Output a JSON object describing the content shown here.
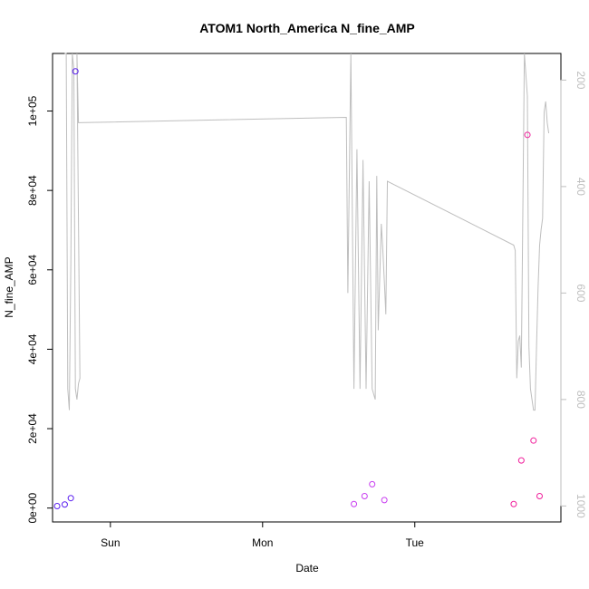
{
  "chart_data": {
    "type": "scatter",
    "title": "ATOM1 North_America N_fine_AMP",
    "xlabel": "Date",
    "ylabel": "N_fine_AMP",
    "x_ticks": [
      "Sun",
      "Mon",
      "Tue"
    ],
    "x_tick_pos": [
      0,
      1,
      2
    ],
    "xlim": [
      -0.38,
      2.96
    ],
    "ylim": [
      -3500,
      114500
    ],
    "y_ticks": [
      0,
      20000,
      40000,
      60000,
      80000,
      100000
    ],
    "y_tick_labels": [
      "0e+00",
      "2e+04",
      "4e+04",
      "6e+04",
      "8e+04",
      "1e+05"
    ],
    "right_axis": {
      "label": "",
      "ticks": [
        200,
        400,
        600,
        800,
        1000
      ],
      "tick_labels": [
        "200",
        "400",
        "600",
        "800",
        "1000"
      ],
      "ylim": [
        1030,
        150
      ],
      "reversed": true,
      "color": "#bebebe"
    },
    "line_series": {
      "name": "",
      "color": "#bebebe",
      "axis": "right",
      "x": [
        -0.3,
        -0.29,
        -0.28,
        -0.27,
        -0.26,
        -0.25,
        -0.24,
        -0.23,
        -0.22,
        -0.21,
        -0.2,
        -0.22,
        -0.21,
        1.55,
        1.56,
        1.58,
        1.6,
        1.62,
        1.64,
        1.66,
        1.68,
        1.7,
        1.72,
        1.74,
        1.75,
        1.76,
        1.78,
        1.79,
        1.8,
        1.81,
        1.82,
        2.65,
        2.66,
        2.67,
        2.68,
        2.69,
        2.7,
        2.72,
        2.74,
        2.75,
        2.76,
        2.77,
        2.78,
        2.79,
        2.8,
        2.81,
        2.82,
        2.83,
        2.84,
        2.85,
        2.86,
        2.87,
        2.88
      ],
      "y": [
        150,
        150,
        780,
        820,
        540,
        150,
        180,
        780,
        800,
        770,
        760,
        150,
        280,
        270,
        600,
        150,
        780,
        330,
        780,
        350,
        780,
        390,
        780,
        800,
        380,
        670,
        470,
        520,
        580,
        640,
        390,
        510,
        520,
        760,
        690,
        680,
        740,
        150,
        230,
        700,
        780,
        800,
        820,
        820,
        700,
        590,
        510,
        480,
        460,
        260,
        240,
        280,
        300
      ]
    },
    "point_groups": [
      {
        "name": "",
        "color": "#5a1ef0",
        "x": [
          -0.35,
          -0.3,
          -0.26,
          -0.23
        ],
        "y": [
          500,
          900,
          2500,
          110000
        ]
      },
      {
        "name": "",
        "color": "#c83cf0",
        "x": [
          1.6,
          1.67,
          1.72,
          1.8
        ],
        "y": [
          1000,
          3000,
          6000,
          2000
        ]
      },
      {
        "name": "",
        "color": "#f01e9b",
        "x": [
          2.65,
          2.7,
          2.74,
          2.78,
          2.82
        ],
        "y": [
          1000,
          12000,
          94000,
          17000,
          3000
        ]
      }
    ]
  }
}
